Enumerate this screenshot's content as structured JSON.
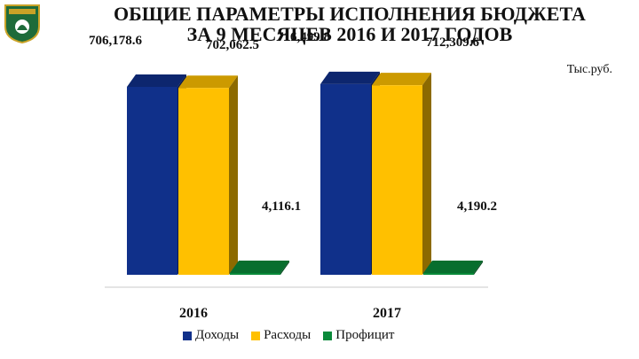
{
  "header": {
    "title_line1": "ОБЩИЕ ПАРАМЕТРЫ ИСПОЛНЕНИЯ БЮДЖЕТА",
    "title_line2": "ЗА 9 МЕСЯЦЕВ 2016 И 2017 ГОДОВ"
  },
  "colors": {
    "Доходы": "#10308a",
    "Расходы": "#ffc000",
    "Профицит": "#0a8a3a",
    "emblem_bg": "#1e6b3a"
  },
  "icons": {
    "emblem": "coat-of-arms-icon"
  },
  "chart_data": {
    "type": "bar",
    "title": "ОБЩИЕ ПАРАМЕТРЫ ИСПОЛНЕНИЯ БЮДЖЕТА ЗА 9 МЕСЯЦЕВ 2016 И 2017 ГОДОВ",
    "unit_label": "Тыс.руб.",
    "categories": [
      "2016",
      "2017"
    ],
    "series": [
      {
        "name": "Доходы",
        "values": [
          706178.6,
          716499.8
        ],
        "labels": [
          "706,178.6",
          "716,499.8"
        ]
      },
      {
        "name": "Расходы",
        "values": [
          702062.5,
          712309.6
        ],
        "labels": [
          "702,062.5",
          "712,309.6"
        ]
      },
      {
        "name": "Профицит",
        "values": [
          4116.1,
          4190.2
        ],
        "labels": [
          "4,116.1",
          "4,190.2"
        ]
      }
    ],
    "legend_position": "bottom",
    "grid": false
  }
}
